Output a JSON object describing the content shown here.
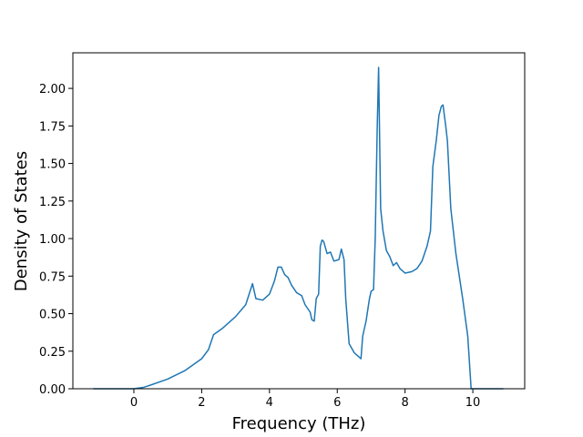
{
  "chart_data": {
    "type": "line",
    "xlabel": "Frequency (THz)",
    "ylabel": "Density of States",
    "color": "#1f77b4",
    "x": [
      -1.2,
      -0.5,
      0,
      0.3,
      0.5,
      1,
      1.5,
      2,
      2.2,
      2.35,
      2.6,
      3,
      3.3,
      3.5,
      3.6,
      3.8,
      4,
      4.15,
      4.25,
      4.35,
      4.45,
      4.55,
      4.65,
      4.8,
      4.95,
      5.05,
      5.2,
      5.25,
      5.32,
      5.38,
      5.45,
      5.5,
      5.55,
      5.6,
      5.7,
      5.8,
      5.9,
      6.05,
      6.12,
      6.2,
      6.25,
      6.3,
      6.35,
      6.5,
      6.7,
      6.75,
      6.85,
      6.95,
      7.0,
      7.07,
      7.12,
      7.18,
      7.22,
      7.28,
      7.35,
      7.45,
      7.55,
      7.65,
      7.75,
      7.85,
      8,
      8.2,
      8.35,
      8.5,
      8.65,
      8.75,
      8.82,
      8.92,
      9.0,
      9.07,
      9.12,
      9.2,
      9.25,
      9.35,
      9.5,
      9.7,
      9.85,
      9.95,
      10.5,
      10.9
    ],
    "values": [
      0,
      0,
      0,
      0.01,
      0.025,
      0.065,
      0.12,
      0.2,
      0.26,
      0.36,
      0.4,
      0.48,
      0.56,
      0.7,
      0.6,
      0.59,
      0.63,
      0.72,
      0.81,
      0.81,
      0.76,
      0.74,
      0.69,
      0.64,
      0.62,
      0.56,
      0.51,
      0.46,
      0.45,
      0.6,
      0.63,
      0.95,
      0.99,
      0.98,
      0.9,
      0.91,
      0.85,
      0.86,
      0.93,
      0.86,
      0.6,
      0.45,
      0.3,
      0.24,
      0.2,
      0.35,
      0.45,
      0.6,
      0.65,
      0.66,
      1.0,
      1.75,
      2.14,
      1.2,
      1.05,
      0.92,
      0.88,
      0.82,
      0.84,
      0.8,
      0.77,
      0.78,
      0.8,
      0.85,
      0.95,
      1.05,
      1.48,
      1.65,
      1.82,
      1.88,
      1.89,
      1.75,
      1.65,
      1.2,
      0.9,
      0.6,
      0.35,
      0,
      0,
      0
    ],
    "xlim": [
      -1.8,
      11.53
    ],
    "xticks": [
      0,
      2,
      4,
      6,
      8,
      10
    ],
    "ylim": [
      0,
      2.237
    ],
    "yticks": [
      {
        "value": 0,
        "label": "0.00"
      },
      {
        "value": 0.25,
        "label": "0.25"
      },
      {
        "value": 0.5,
        "label": "0.50"
      },
      {
        "value": 0.75,
        "label": "0.75"
      },
      {
        "value": 1.0,
        "label": "1.00"
      },
      {
        "value": 1.25,
        "label": "1.25"
      },
      {
        "value": 1.5,
        "label": "1.50"
      },
      {
        "value": 1.75,
        "label": "1.75"
      },
      {
        "value": 2.0,
        "label": "2.00"
      }
    ]
  }
}
